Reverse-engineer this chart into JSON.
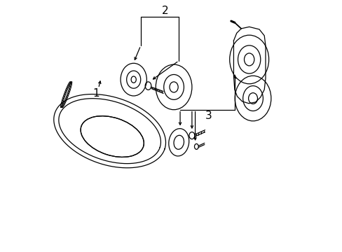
{
  "background_color": "#ffffff",
  "line_color": "#000000",
  "label_color": "#000000",
  "label_fontsize": 11,
  "figsize": [
    4.89,
    3.6
  ],
  "dpi": 100
}
